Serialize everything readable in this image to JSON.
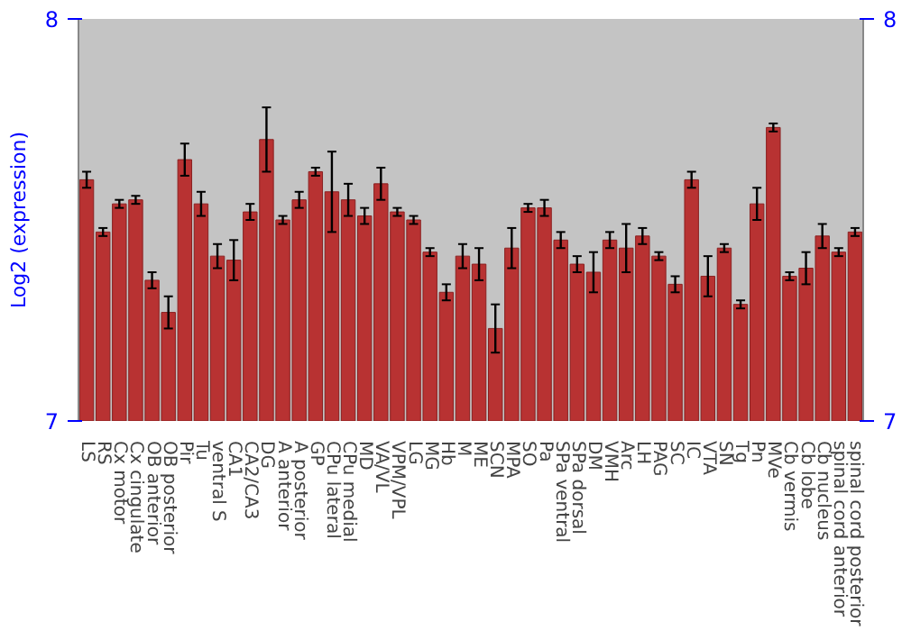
{
  "chart_data": {
    "type": "bar",
    "ylabel": "Log2 (expression)",
    "categories": [
      "LS",
      "RS",
      "Cx motor",
      "Cx cingulate",
      "OB anterior",
      "OB posterior",
      "Pir",
      "Tu",
      "ventral S",
      "CA1",
      "CA2/CA3",
      "DG",
      "A anterior",
      "A posterior",
      "GP",
      "CPu lateral",
      "CPu medial",
      "MD",
      "VA/VL",
      "VPM/VPL",
      "LG",
      "MG",
      "Hb",
      "M",
      "ME",
      "SCN",
      "MPA",
      "SO",
      "Pa",
      "SPa ventral",
      "SPa dorsal",
      "DM",
      "VMH",
      "Arc",
      "LH",
      "PAG",
      "SC",
      "IC",
      "VTA",
      "SN",
      "Tg",
      "Pn",
      "MVe",
      "Cb vermis",
      "Cb lobe",
      "Cb nucleus",
      "spinal cord anterior",
      "spinal cord posterior"
    ],
    "values": [
      7.6,
      7.47,
      7.54,
      7.55,
      7.35,
      7.27,
      7.65,
      7.54,
      7.41,
      7.4,
      7.52,
      7.7,
      7.5,
      7.55,
      7.62,
      7.57,
      7.55,
      7.51,
      7.59,
      7.52,
      7.5,
      7.42,
      7.32,
      7.41,
      7.39,
      7.23,
      7.43,
      7.53,
      7.53,
      7.45,
      7.39,
      7.37,
      7.45,
      7.43,
      7.46,
      7.41,
      7.34,
      7.6,
      7.36,
      7.43,
      7.29,
      7.54,
      7.73,
      7.36,
      7.38,
      7.46,
      7.42,
      7.47
    ],
    "errors": [
      0.02,
      0.01,
      0.01,
      0.01,
      0.02,
      0.04,
      0.04,
      0.03,
      0.03,
      0.05,
      0.02,
      0.08,
      0.01,
      0.02,
      0.01,
      0.1,
      0.04,
      0.02,
      0.04,
      0.01,
      0.01,
      0.01,
      0.02,
      0.03,
      0.04,
      0.06,
      0.05,
      0.01,
      0.02,
      0.02,
      0.02,
      0.05,
      0.02,
      0.06,
      0.02,
      0.01,
      0.02,
      0.02,
      0.05,
      0.01,
      0.01,
      0.04,
      0.01,
      0.01,
      0.04,
      0.03,
      0.01,
      0.01
    ],
    "color": "#b83232",
    "ylim": [
      7,
      8
    ],
    "yticks": [
      7,
      8
    ],
    "y2lim": [
      7,
      8
    ],
    "y2ticks": [
      7,
      8
    ],
    "grid": false
  }
}
